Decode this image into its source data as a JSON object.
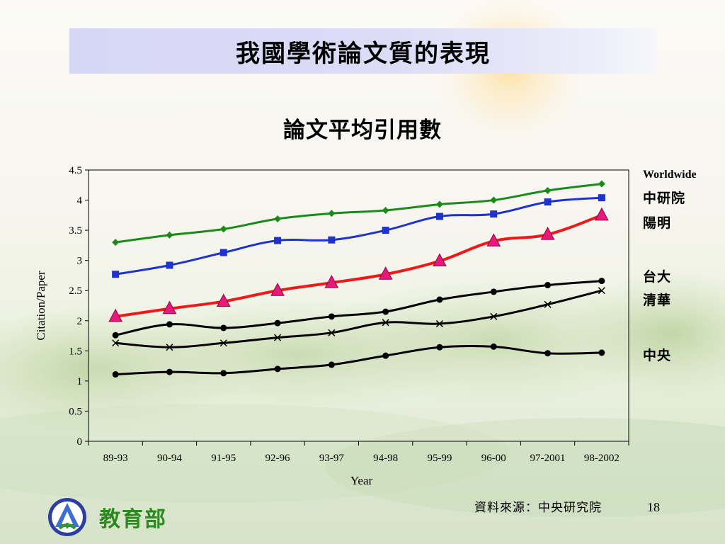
{
  "slide": {
    "title": "我國學術論文質的表現",
    "source": "資料來源：中央研究院",
    "page_number": "18",
    "ministry": "教育部"
  },
  "chart_data": {
    "type": "line",
    "title": "論文平均引用數",
    "xlabel": "Year",
    "ylabel": "Citation/Paper",
    "categories": [
      "89-93",
      "90-94",
      "91-95",
      "92-96",
      "93-97",
      "94-98",
      "95-99",
      "96-00",
      "97-2001",
      "98-2002"
    ],
    "ylim": [
      0,
      4.5
    ],
    "yticks": [
      "0",
      "0.5",
      "1",
      "1.5",
      "2",
      "2.5",
      "3",
      "3.5",
      "4",
      "4.5"
    ],
    "grid": false,
    "legend_position": "right",
    "series": [
      {
        "name": "Worldwide",
        "color": "#1a8a1a",
        "marker": "diamond",
        "values": [
          3.3,
          3.42,
          3.52,
          3.69,
          3.78,
          3.83,
          3.93,
          4.0,
          4.16,
          4.27
        ]
      },
      {
        "name": "中研院",
        "color": "#1f33cc",
        "marker": "square",
        "values": [
          2.77,
          2.92,
          3.13,
          3.33,
          3.34,
          3.5,
          3.73,
          3.77,
          3.97,
          4.04
        ]
      },
      {
        "name": "陽明",
        "color": "#f01818",
        "marker": "triangle",
        "values": [
          2.07,
          2.2,
          2.32,
          2.5,
          2.63,
          2.77,
          2.99,
          3.32,
          3.43,
          3.75
        ]
      },
      {
        "name": "台大",
        "color": "#000000",
        "marker": "circle",
        "values": [
          1.76,
          1.94,
          1.88,
          1.96,
          2.07,
          2.15,
          2.35,
          2.48,
          2.59,
          2.66
        ]
      },
      {
        "name": "清華",
        "color": "#000000",
        "marker": "x",
        "values": [
          1.63,
          1.56,
          1.63,
          1.72,
          1.8,
          1.97,
          1.95,
          2.07,
          2.27,
          2.5
        ]
      },
      {
        "name": "中央",
        "color": "#000000",
        "marker": "circle",
        "values": [
          1.11,
          1.15,
          1.13,
          1.2,
          1.27,
          1.42,
          1.56,
          1.57,
          1.46,
          1.47
        ]
      }
    ]
  }
}
